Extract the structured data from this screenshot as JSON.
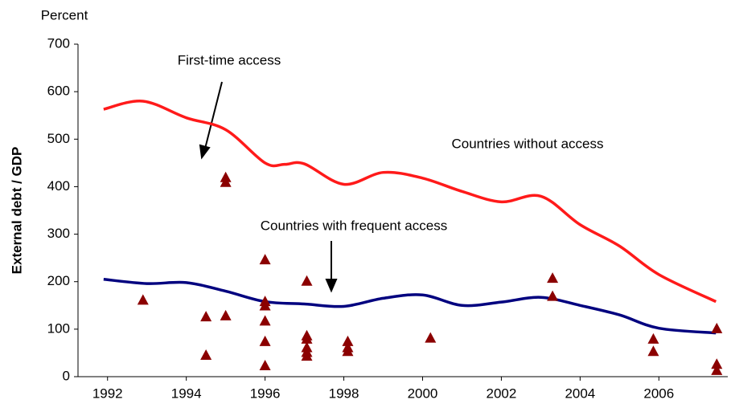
{
  "chart_data": {
    "type": "line",
    "y_unit_label": "Percent",
    "ylabel": "External debt / GDP",
    "annotations": [
      "First-time access",
      "Countries without access",
      "Countries with frequent access"
    ],
    "xlim": [
      1991.25,
      2007.75
    ],
    "xticks": [
      1992,
      1994,
      1996,
      1998,
      2000,
      2002,
      2004,
      2006
    ],
    "ylim": [
      0,
      700
    ],
    "yticks": [
      0,
      100,
      200,
      300,
      400,
      500,
      600,
      700
    ],
    "series": [
      {
        "type": "line",
        "color": "#ff1a1a",
        "x": [
          1991.9,
          1992.9,
          1994,
          1995,
          1996,
          1996.5,
          1997,
          1998,
          1999,
          2000,
          2001,
          2002,
          2003,
          2004,
          2005,
          2006,
          2007.45
        ],
        "values": [
          563,
          580,
          545,
          520,
          450,
          447,
          448,
          405,
          430,
          418,
          390,
          368,
          380,
          320,
          275,
          215,
          158
        ]
      },
      {
        "type": "line",
        "color": "#00007f",
        "x": [
          1991.9,
          1993,
          1994,
          1995,
          1996,
          1997,
          1998,
          1999,
          2000,
          2001,
          2002,
          2003,
          2004,
          2005,
          2006,
          2007.45
        ],
        "values": [
          205,
          196,
          198,
          180,
          158,
          153,
          148,
          165,
          172,
          150,
          157,
          167,
          150,
          130,
          102,
          92
        ]
      },
      {
        "type": "scatter",
        "color": "#8b0000",
        "x": [
          1992.9,
          1994.5,
          1994.5,
          1995,
          1995,
          1995,
          1996,
          1996,
          1996,
          1996,
          1996,
          1996,
          1997.06,
          1997.06,
          1997.06,
          1997.06,
          1997.06,
          1997.06,
          1998.1,
          1998.1,
          1998.1,
          2000.2,
          2003.3,
          2003.3,
          2005.86,
          2005.86,
          2007.47,
          2007.47,
          2007.47
        ],
        "values": [
          160,
          125,
          44,
          418,
          408,
          127,
          245,
          157,
          148,
          116,
          73,
          22,
          200,
          85,
          78,
          60,
          50,
          42,
          73,
          60,
          52,
          80,
          206,
          168,
          78,
          52,
          100,
          25,
          12
        ]
      }
    ]
  }
}
